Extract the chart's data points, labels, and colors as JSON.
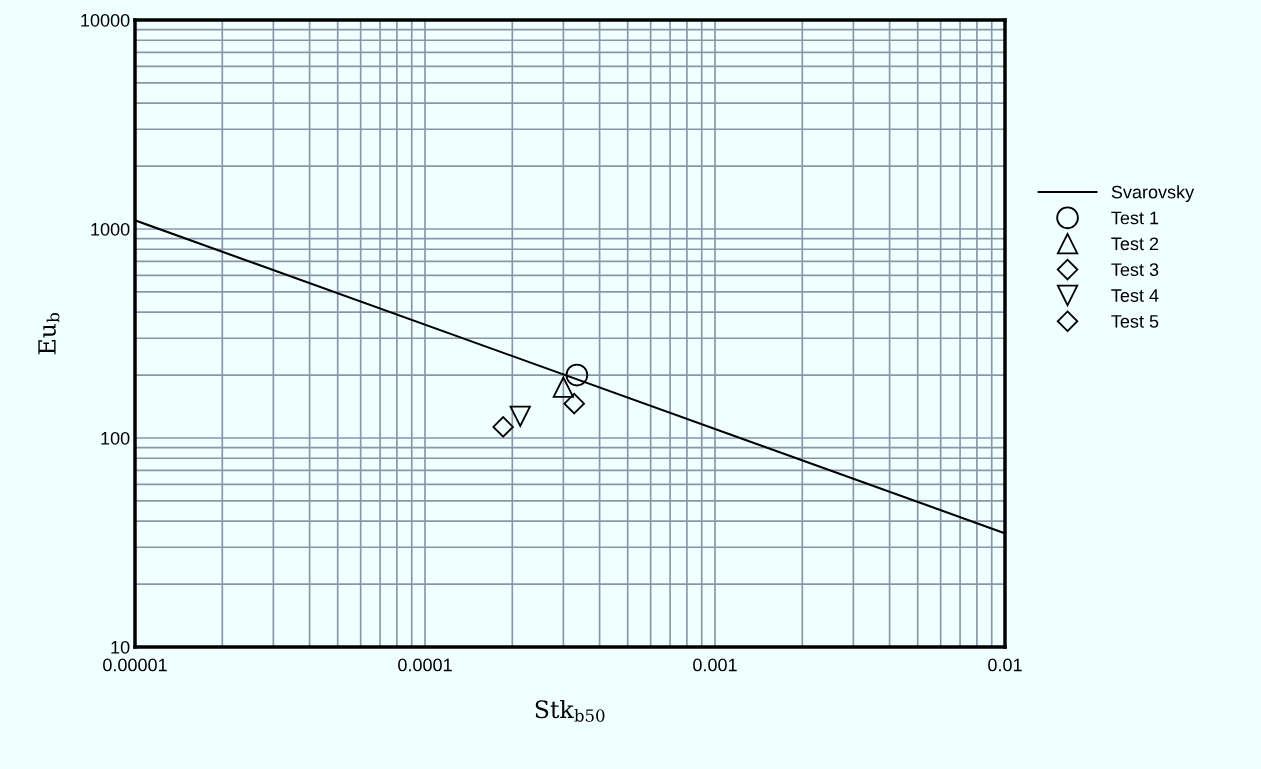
{
  "chart_data": {
    "type": "scatter",
    "xlabel": "Stk$_{b50}$",
    "ylabel": "Eu$_{b}$",
    "log": "xy",
    "grid": true,
    "legend": "right",
    "xlim": [
      1e-05,
      0.01
    ],
    "ylim": [
      10,
      10000
    ],
    "xticks": [
      {
        "value": 1e-05,
        "label": "0.00001"
      },
      {
        "value": 0.0001,
        "label": "0.0001"
      },
      {
        "value": 0.001,
        "label": "0.001"
      },
      {
        "value": 0.01,
        "label": "0.01"
      }
    ],
    "yticks": [
      10,
      100,
      1000,
      10000
    ],
    "series": [
      {
        "name": "Svarovsky",
        "type": "line",
        "color": "#000000",
        "marker": "none",
        "line_style": "solid",
        "x": [
          1e-05,
          0.01
        ],
        "values": [
          1100,
          35
        ]
      },
      {
        "name": "Test 1",
        "color": "#000000",
        "marker": "circle",
        "x": [
          0.000334
        ],
        "values": [
          200
        ]
      },
      {
        "name": "Test 2",
        "color": "#000000",
        "marker": "triangle",
        "x": [
          0.0003
        ],
        "values": [
          175
        ]
      },
      {
        "name": "Test 3",
        "color": "#000000",
        "marker": "diamond",
        "x": [
          0.000327
        ],
        "values": [
          146
        ]
      },
      {
        "name": "Test 4",
        "color": "#000000",
        "marker": "triangle_down",
        "x": [
          0.000213
        ],
        "values": [
          127
        ]
      },
      {
        "name": "Test 5",
        "color": "#000000",
        "marker": "diamond",
        "x": [
          0.000186
        ],
        "values": [
          113
        ]
      }
    ]
  }
}
